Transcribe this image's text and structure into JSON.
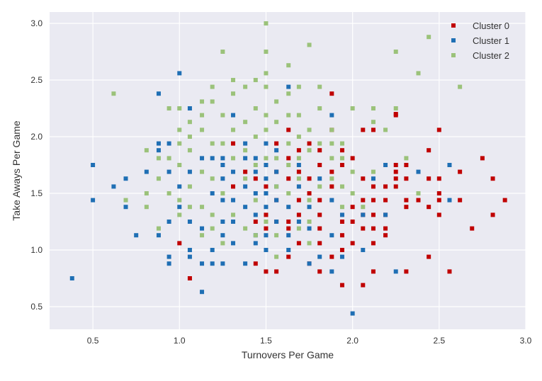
{
  "chart_data": {
    "type": "scatter",
    "title": "",
    "xlabel": "Turnovers Per Game",
    "ylabel": "Take Aways Per Game",
    "xlim": [
      0.25,
      3.0
    ],
    "ylim": [
      0.3,
      3.1
    ],
    "xticks": [
      0.5,
      1.0,
      1.5,
      2.0,
      2.5,
      3.0
    ],
    "xtick_labels": [
      "0.5",
      "1.0",
      "1.5",
      "2.0",
      "2.5",
      "3.0"
    ],
    "yticks": [
      0.5,
      1.0,
      1.5,
      2.0,
      2.5,
      3.0
    ],
    "ytick_labels": [
      "0.5",
      "1.0",
      "1.5",
      "2.0",
      "2.5",
      "3.0"
    ],
    "grid": true,
    "legend_position": "top-right",
    "background": "#eaeaf2",
    "series": [
      {
        "name": "Cluster 0",
        "color": "#c00000",
        "points": [
          [
            1.56,
            1.94
          ],
          [
            1.63,
            2.06
          ],
          [
            1.69,
            1.88
          ],
          [
            1.75,
            1.94
          ],
          [
            1.81,
            1.88
          ],
          [
            1.88,
            2.06
          ],
          [
            1.94,
            1.88
          ],
          [
            2.06,
            2.06
          ],
          [
            2.12,
            2.06
          ],
          [
            2.25,
            2.19
          ],
          [
            2.5,
            2.06
          ],
          [
            2.44,
            1.88
          ],
          [
            2.75,
            1.81
          ],
          [
            2.62,
            1.69
          ],
          [
            2.81,
            1.63
          ],
          [
            2.88,
            1.44
          ],
          [
            2.81,
            1.31
          ],
          [
            2.69,
            1.19
          ],
          [
            2.5,
            1.31
          ],
          [
            2.5,
            1.44
          ],
          [
            2.5,
            1.63
          ],
          [
            2.5,
            1.5
          ],
          [
            2.38,
            1.44
          ],
          [
            2.44,
            1.38
          ],
          [
            2.31,
            1.38
          ],
          [
            2.31,
            1.44
          ],
          [
            2.25,
            1.56
          ],
          [
            2.25,
            1.63
          ],
          [
            2.25,
            1.69
          ],
          [
            2.25,
            1.75
          ],
          [
            2.31,
            1.75
          ],
          [
            2.31,
            1.63
          ],
          [
            2.19,
            1.56
          ],
          [
            2.19,
            1.44
          ],
          [
            2.19,
            1.31
          ],
          [
            2.19,
            1.19
          ],
          [
            2.19,
            1.13
          ],
          [
            2.12,
            1.06
          ],
          [
            2.12,
            1.19
          ],
          [
            2.12,
            1.31
          ],
          [
            2.12,
            1.44
          ],
          [
            2.12,
            1.56
          ],
          [
            2.06,
            1.63
          ],
          [
            2.06,
            1.44
          ],
          [
            2.06,
            1.31
          ],
          [
            2.06,
            1.19
          ],
          [
            2.0,
            1.06
          ],
          [
            2.0,
            1.25
          ],
          [
            2.0,
            1.38
          ],
          [
            1.94,
            1.25
          ],
          [
            1.94,
            1.13
          ],
          [
            1.94,
            1.0
          ],
          [
            1.88,
            0.94
          ],
          [
            1.81,
            0.81
          ],
          [
            1.81,
            1.06
          ],
          [
            1.81,
            1.19
          ],
          [
            1.81,
            1.31
          ],
          [
            1.81,
            1.44
          ],
          [
            1.88,
            1.56
          ],
          [
            1.88,
            1.69
          ],
          [
            1.81,
            1.75
          ],
          [
            1.75,
            1.63
          ],
          [
            1.75,
            1.5
          ],
          [
            1.69,
            1.44
          ],
          [
            1.69,
            1.31
          ],
          [
            1.63,
            1.19
          ],
          [
            1.63,
            1.25
          ],
          [
            1.56,
            1.25
          ],
          [
            1.5,
            1.19
          ],
          [
            1.44,
            1.25
          ],
          [
            1.5,
            1.31
          ],
          [
            1.56,
            1.44
          ],
          [
            1.63,
            1.63
          ],
          [
            1.56,
            1.69
          ],
          [
            1.63,
            1.81
          ],
          [
            1.5,
            1.56
          ],
          [
            1.44,
            1.63
          ],
          [
            1.38,
            1.69
          ],
          [
            1.31,
            1.56
          ],
          [
            1.31,
            1.94
          ],
          [
            1.88,
            2.38
          ],
          [
            2.25,
            2.2
          ],
          [
            1.5,
            0.81
          ],
          [
            1.56,
            0.81
          ],
          [
            1.44,
            0.88
          ],
          [
            1.63,
            0.94
          ],
          [
            1.75,
            0.88
          ],
          [
            1.69,
            1.06
          ],
          [
            1.94,
            0.69
          ],
          [
            2.06,
            0.69
          ],
          [
            2.12,
            0.81
          ],
          [
            2.31,
            0.81
          ],
          [
            2.44,
            0.94
          ],
          [
            2.56,
            0.81
          ],
          [
            2.62,
            1.44
          ],
          [
            1.0,
            1.06
          ],
          [
            1.06,
            0.75
          ],
          [
            2.44,
            1.63
          ],
          [
            1.94,
            1.75
          ],
          [
            2.0,
            1.81
          ],
          [
            1.69,
            1.69
          ]
        ]
      },
      {
        "name": "Cluster 1",
        "color": "#1f6fb4",
        "points": [
          [
            0.38,
            0.75
          ],
          [
            0.5,
            1.44
          ],
          [
            0.5,
            1.75
          ],
          [
            0.62,
            1.56
          ],
          [
            0.69,
            1.63
          ],
          [
            0.69,
            1.38
          ],
          [
            0.75,
            1.13
          ],
          [
            0.81,
            1.69
          ],
          [
            0.88,
            1.88
          ],
          [
            0.88,
            1.94
          ],
          [
            0.88,
            1.13
          ],
          [
            0.88,
            2.38
          ],
          [
            0.94,
            0.94
          ],
          [
            0.94,
            0.88
          ],
          [
            0.94,
            1.25
          ],
          [
            0.94,
            1.69
          ],
          [
            0.94,
            1.94
          ],
          [
            1.0,
            2.56
          ],
          [
            1.0,
            1.56
          ],
          [
            1.0,
            1.38
          ],
          [
            1.06,
            1.0
          ],
          [
            1.06,
            0.94
          ],
          [
            1.06,
            1.25
          ],
          [
            1.06,
            1.69
          ],
          [
            1.06,
            2.25
          ],
          [
            1.13,
            0.63
          ],
          [
            1.13,
            0.88
          ],
          [
            1.13,
            1.19
          ],
          [
            1.13,
            1.81
          ],
          [
            1.19,
            1.5
          ],
          [
            1.19,
            1.0
          ],
          [
            1.19,
            0.88
          ],
          [
            1.25,
            0.88
          ],
          [
            1.25,
            1.13
          ],
          [
            1.25,
            1.25
          ],
          [
            1.25,
            1.44
          ],
          [
            1.25,
            1.63
          ],
          [
            1.25,
            1.81
          ],
          [
            1.31,
            2.19
          ],
          [
            1.31,
            1.44
          ],
          [
            1.31,
            1.25
          ],
          [
            1.31,
            1.06
          ],
          [
            1.38,
            0.88
          ],
          [
            1.38,
            1.38
          ],
          [
            1.38,
            1.56
          ],
          [
            1.38,
            1.94
          ],
          [
            1.44,
            1.81
          ],
          [
            1.44,
            1.5
          ],
          [
            1.44,
            1.31
          ],
          [
            1.44,
            1.13
          ],
          [
            1.44,
            1.06
          ],
          [
            1.5,
            1.94
          ],
          [
            1.5,
            1.75
          ],
          [
            1.5,
            1.63
          ],
          [
            1.5,
            1.5
          ],
          [
            1.5,
            1.38
          ],
          [
            1.5,
            1.13
          ],
          [
            1.5,
            1.0
          ],
          [
            1.56,
            1.88
          ],
          [
            1.56,
            1.56
          ],
          [
            1.56,
            1.44
          ],
          [
            1.56,
            1.25
          ],
          [
            1.63,
            2.44
          ],
          [
            1.63,
            1.38
          ],
          [
            1.63,
            1.13
          ],
          [
            1.63,
            1.0
          ],
          [
            1.69,
            1.25
          ],
          [
            1.69,
            1.56
          ],
          [
            1.75,
            1.38
          ],
          [
            1.75,
            1.19
          ],
          [
            1.75,
            0.88
          ],
          [
            1.81,
            0.94
          ],
          [
            1.81,
            1.63
          ],
          [
            1.88,
            2.19
          ],
          [
            1.88,
            1.44
          ],
          [
            1.88,
            0.81
          ],
          [
            1.94,
            1.31
          ],
          [
            1.94,
            0.94
          ],
          [
            2.0,
            0.44
          ],
          [
            2.06,
            1.31
          ],
          [
            2.06,
            1.0
          ],
          [
            2.12,
            1.63
          ],
          [
            2.19,
            1.75
          ],
          [
            2.19,
            1.31
          ],
          [
            2.25,
            0.81
          ],
          [
            2.38,
            1.69
          ],
          [
            2.56,
            1.44
          ],
          [
            2.56,
            1.75
          ],
          [
            1.88,
            1.13
          ],
          [
            1.31,
            1.69
          ],
          [
            1.38,
            1.81
          ],
          [
            1.44,
            1.69
          ],
          [
            1.56,
            1.69
          ],
          [
            1.69,
            1.75
          ],
          [
            1.25,
            1.75
          ],
          [
            1.19,
            1.81
          ]
        ]
      },
      {
        "name": "Cluster 2",
        "color": "#9bc27a",
        "points": [
          [
            0.62,
            2.38
          ],
          [
            0.69,
            1.44
          ],
          [
            0.81,
            1.88
          ],
          [
            0.81,
            1.5
          ],
          [
            0.81,
            1.38
          ],
          [
            0.88,
            1.63
          ],
          [
            0.88,
            1.81
          ],
          [
            0.88,
            1.19
          ],
          [
            0.94,
            1.81
          ],
          [
            0.94,
            1.5
          ],
          [
            0.94,
            2.25
          ],
          [
            1.0,
            2.06
          ],
          [
            1.0,
            1.94
          ],
          [
            1.0,
            1.75
          ],
          [
            1.0,
            1.44
          ],
          [
            1.0,
            1.31
          ],
          [
            1.0,
            2.25
          ],
          [
            1.06,
            2.13
          ],
          [
            1.06,
            2.0
          ],
          [
            1.06,
            1.88
          ],
          [
            1.06,
            1.56
          ],
          [
            1.06,
            1.38
          ],
          [
            1.13,
            2.31
          ],
          [
            1.13,
            2.19
          ],
          [
            1.13,
            2.06
          ],
          [
            1.13,
            1.69
          ],
          [
            1.13,
            1.38
          ],
          [
            1.13,
            1.13
          ],
          [
            1.19,
            2.44
          ],
          [
            1.19,
            2.31
          ],
          [
            1.19,
            1.94
          ],
          [
            1.19,
            1.63
          ],
          [
            1.19,
            1.19
          ],
          [
            1.25,
            2.75
          ],
          [
            1.25,
            2.19
          ],
          [
            1.25,
            1.94
          ],
          [
            1.25,
            1.5
          ],
          [
            1.25,
            1.06
          ],
          [
            1.31,
            2.5
          ],
          [
            1.31,
            2.38
          ],
          [
            1.31,
            2.06
          ],
          [
            1.31,
            1.81
          ],
          [
            1.31,
            1.31
          ],
          [
            1.38,
            2.44
          ],
          [
            1.38,
            2.13
          ],
          [
            1.38,
            1.88
          ],
          [
            1.38,
            1.63
          ],
          [
            1.38,
            1.19
          ],
          [
            1.44,
            2.5
          ],
          [
            1.44,
            2.25
          ],
          [
            1.44,
            2.0
          ],
          [
            1.44,
            1.75
          ],
          [
            1.44,
            1.44
          ],
          [
            1.5,
            3.0
          ],
          [
            1.5,
            2.75
          ],
          [
            1.5,
            2.56
          ],
          [
            1.5,
            2.44
          ],
          [
            1.5,
            2.19
          ],
          [
            1.5,
            2.06
          ],
          [
            1.5,
            1.81
          ],
          [
            1.5,
            1.25
          ],
          [
            1.56,
            2.31
          ],
          [
            1.56,
            2.13
          ],
          [
            1.56,
            1.81
          ],
          [
            1.56,
            1.56
          ],
          [
            1.56,
            1.13
          ],
          [
            1.63,
            2.63
          ],
          [
            1.63,
            2.38
          ],
          [
            1.63,
            2.19
          ],
          [
            1.63,
            1.94
          ],
          [
            1.63,
            1.75
          ],
          [
            1.63,
            1.5
          ],
          [
            1.69,
            2.44
          ],
          [
            1.69,
            2.19
          ],
          [
            1.69,
            2.0
          ],
          [
            1.69,
            1.81
          ],
          [
            1.69,
            1.63
          ],
          [
            1.69,
            1.19
          ],
          [
            1.75,
            2.81
          ],
          [
            1.75,
            2.06
          ],
          [
            1.75,
            1.88
          ],
          [
            1.75,
            1.44
          ],
          [
            1.75,
            1.06
          ],
          [
            1.81,
            2.44
          ],
          [
            1.81,
            2.25
          ],
          [
            1.81,
            1.94
          ],
          [
            1.81,
            1.56
          ],
          [
            1.88,
            2.06
          ],
          [
            1.88,
            1.94
          ],
          [
            1.88,
            1.81
          ],
          [
            1.88,
            1.63
          ],
          [
            1.94,
            1.94
          ],
          [
            1.94,
            1.81
          ],
          [
            1.94,
            1.56
          ],
          [
            1.94,
            1.38
          ],
          [
            2.0,
            2.25
          ],
          [
            2.0,
            1.69
          ],
          [
            2.0,
            1.5
          ],
          [
            2.06,
            1.38
          ],
          [
            2.12,
            2.25
          ],
          [
            2.12,
            2.13
          ],
          [
            2.12,
            1.69
          ],
          [
            2.19,
            2.06
          ],
          [
            2.25,
            2.75
          ],
          [
            2.25,
            2.25
          ],
          [
            2.31,
            1.81
          ],
          [
            2.38,
            2.56
          ],
          [
            2.38,
            1.5
          ],
          [
            2.44,
            2.88
          ],
          [
            2.62,
            2.44
          ],
          [
            1.75,
            1.25
          ],
          [
            1.44,
            1.13
          ],
          [
            1.19,
            1.31
          ],
          [
            1.56,
            0.94
          ]
        ]
      }
    ]
  }
}
